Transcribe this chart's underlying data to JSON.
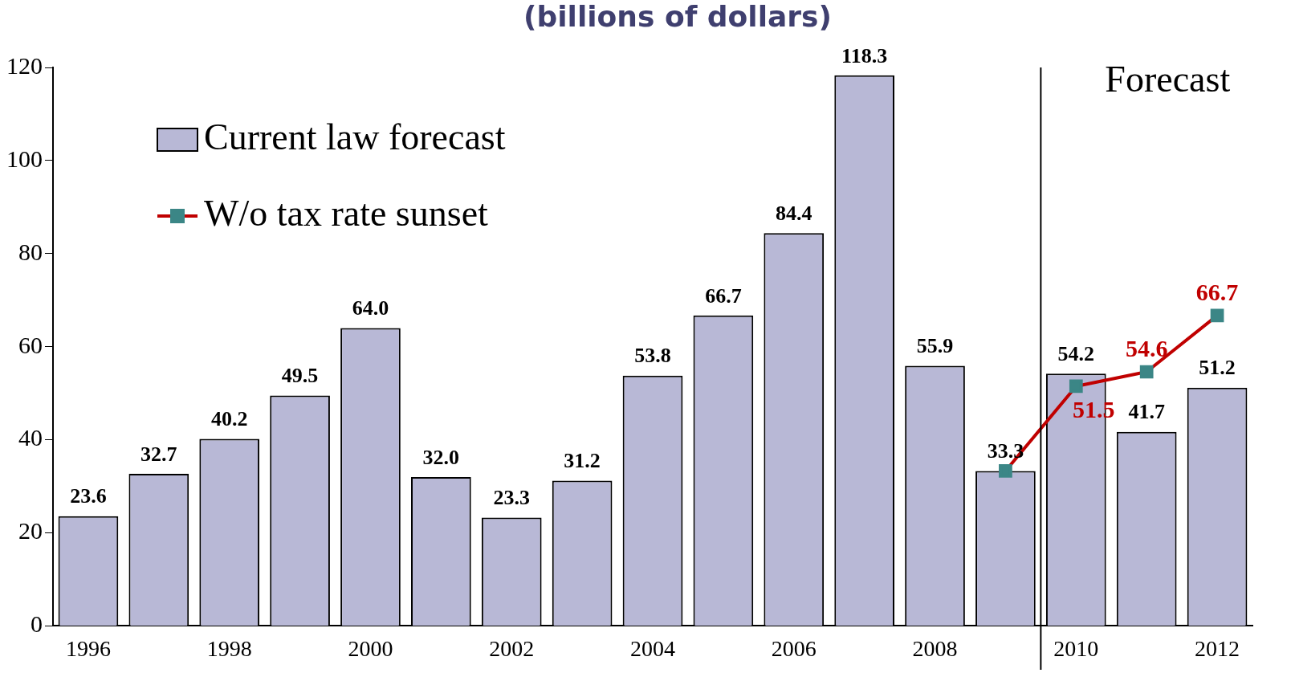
{
  "chart_data": {
    "type": "bar",
    "title": "(billions of dollars)",
    "x": [
      1996,
      1997,
      1998,
      1999,
      2000,
      2001,
      2002,
      2003,
      2004,
      2005,
      2006,
      2007,
      2008,
      2009,
      2010,
      2011,
      2012
    ],
    "xlim": [
      1995.5,
      2012.5
    ],
    "xticks": [
      1996,
      1998,
      2000,
      2002,
      2004,
      2006,
      2008,
      2010,
      2012
    ],
    "ylim": [
      0,
      120
    ],
    "yticks": [
      0,
      20,
      40,
      60,
      80,
      100,
      120
    ],
    "series": [
      {
        "name": "Current law forecast",
        "color": "#b8b8d6",
        "values": [
          23.6,
          32.7,
          40.2,
          49.5,
          64.0,
          32.0,
          23.3,
          31.2,
          53.8,
          66.7,
          84.4,
          118.3,
          55.9,
          33.3,
          54.2,
          41.7,
          51.2
        ],
        "value_labels": [
          "23.6",
          "32.7",
          "40.2",
          "49.5",
          "64.0",
          "32.0",
          "23.3",
          "31.2",
          "53.8",
          "66.7",
          "84.4",
          "118.3",
          "55.9",
          "33.3",
          "54.2",
          "41.7",
          "51.2"
        ]
      },
      {
        "name": "W/o tax rate sunset",
        "type": "line",
        "color": "#c00000",
        "x": [
          2009,
          2010,
          2011,
          2012
        ],
        "values": [
          33.3,
          51.5,
          54.6,
          66.7
        ],
        "value_labels": [
          null,
          "51.5",
          "54.6",
          "66.7"
        ],
        "marker": "square"
      }
    ],
    "ref_lines": [
      {
        "axis": "x",
        "value": 2009.5,
        "label": "Forecast",
        "color": "#000000"
      }
    ],
    "legend": "top left",
    "grid": false
  }
}
